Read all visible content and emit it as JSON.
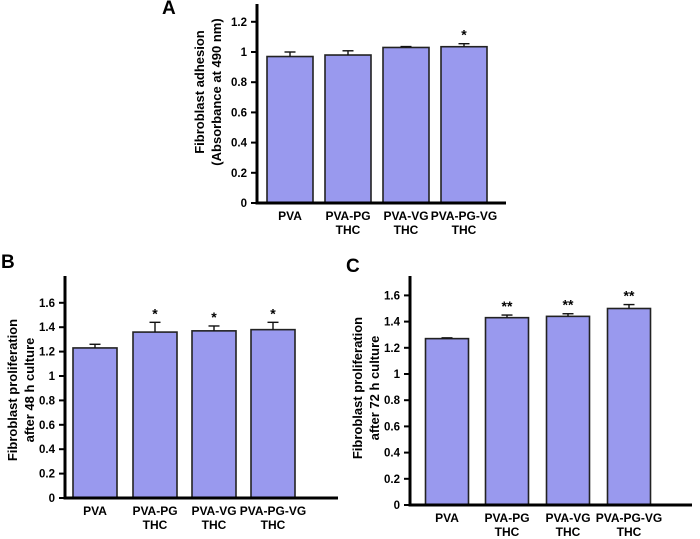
{
  "figure": {
    "background": "#ffffff",
    "panels": [
      {
        "letter": "A",
        "ylabel_line1": "Fibroblast adhesion",
        "ylabel_line2": "(Absorbance at 490 nm)"
      },
      {
        "letter": "B",
        "ylabel_line1": "Fibroblast proliferation",
        "ylabel_line2": "after 48 h culture"
      },
      {
        "letter": "C",
        "ylabel_line1": "Fibroblast proliferation",
        "ylabel_line2": "after 72 h culture"
      }
    ]
  },
  "colors": {
    "bar_fill": "#9999ee",
    "bar_stroke": "#222222",
    "error_bar": "#111111",
    "axis": "#000000",
    "text": "#000000"
  },
  "chart_data": [
    {
      "id": "A",
      "type": "bar",
      "title": "",
      "ylabel": "Fibroblast adhesion (Absorbance at 490 nm)",
      "xlabel": "",
      "categories": [
        "PVA",
        "PVA-PG THC",
        "PVA-VG THC",
        "PVA-PG-VG THC"
      ],
      "category_lines": [
        [
          "PVA",
          ""
        ],
        [
          "PVA-PG",
          "THC"
        ],
        [
          "PVA-VG",
          "THC"
        ],
        [
          "PVA-PG-VG",
          "THC"
        ]
      ],
      "values": [
        0.97,
        0.98,
        1.03,
        1.035
      ],
      "errors": [
        0.03,
        0.028,
        0.006,
        0.02
      ],
      "significance": [
        "",
        "",
        "",
        "*"
      ],
      "yticks": [
        0,
        0.2,
        0.4,
        0.6,
        0.8,
        1,
        1.2
      ],
      "ylim": [
        0,
        1.32
      ],
      "grid": false,
      "legend": "none"
    },
    {
      "id": "B",
      "type": "bar",
      "title": "",
      "ylabel": "Fibroblast proliferation after 48 h culture",
      "xlabel": "",
      "categories": [
        "PVA",
        "PVA-PG THC",
        "PVA-VG THC",
        "PVA-PG-VG THC"
      ],
      "category_lines": [
        [
          "PVA",
          ""
        ],
        [
          "PVA-PG",
          "THC"
        ],
        [
          "PVA-VG",
          "THC"
        ],
        [
          "PVA-PG-VG",
          "THC"
        ]
      ],
      "values": [
        1.23,
        1.36,
        1.37,
        1.38
      ],
      "errors": [
        0.03,
        0.08,
        0.04,
        0.06
      ],
      "significance": [
        "",
        "*",
        "*",
        "*"
      ],
      "yticks": [
        0,
        0.2,
        0.4,
        0.6,
        0.8,
        1,
        1.2,
        1.4,
        1.6
      ],
      "ylim": [
        0,
        1.82
      ],
      "grid": false,
      "legend": "none"
    },
    {
      "id": "C",
      "type": "bar",
      "title": "",
      "ylabel": "Fibroblast proliferation after 72 h culture",
      "xlabel": "",
      "categories": [
        "PVA",
        "PVA-PG THC",
        "PVA-VG THC",
        "PVA-PG-VG THC"
      ],
      "category_lines": [
        [
          "PVA",
          ""
        ],
        [
          "PVA-PG",
          "THC"
        ],
        [
          "PVA-VG",
          "THC"
        ],
        [
          "PVA-PG-VG",
          "THC"
        ]
      ],
      "values": [
        1.27,
        1.43,
        1.44,
        1.5
      ],
      "errors": [
        0.006,
        0.02,
        0.02,
        0.03
      ],
      "significance": [
        "",
        "**",
        "**",
        "**"
      ],
      "yticks": [
        0,
        0.2,
        0.4,
        0.6,
        0.8,
        1,
        1.2,
        1.4,
        1.6
      ],
      "ylim": [
        0,
        1.75
      ],
      "grid": false,
      "legend": "none"
    }
  ]
}
